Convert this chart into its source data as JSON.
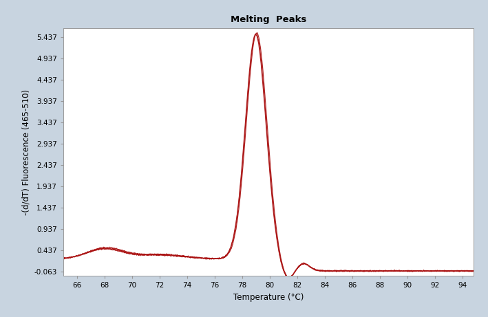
{
  "title": "Melting  Peaks",
  "xlabel": "Temperature (°C)",
  "ylabel": "-(d/dT) Fluorescence (465-510)",
  "xlim": [
    65.0,
    94.8
  ],
  "ylim": [
    -0.163,
    5.637
  ],
  "ytick_values": [
    -0.063,
    0.437,
    0.937,
    1.437,
    1.937,
    2.437,
    2.937,
    3.437,
    3.937,
    4.437,
    4.937,
    5.437
  ],
  "xtick_values": [
    66,
    68,
    70,
    72,
    74,
    76,
    78,
    80,
    82,
    84,
    86,
    88,
    90,
    92,
    94
  ],
  "background_outer": "#c8d4e0",
  "background_inner": "#ffffff",
  "line_color": "#aa1111",
  "title_fontsize": 9.5,
  "axis_fontsize": 8.5,
  "tick_fontsize": 7.5
}
